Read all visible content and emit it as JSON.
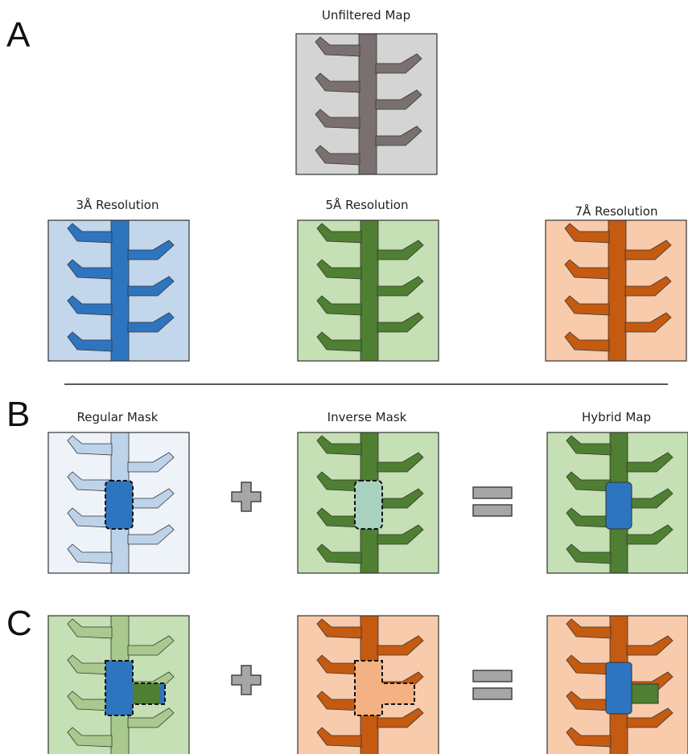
{
  "panels": {
    "A": {
      "letter": "A",
      "top": "Unfiltered Map",
      "row": [
        "3Å Resolution",
        "5Å Resolution",
        "7Å Resolution"
      ]
    },
    "B": {
      "letter": "B",
      "row": [
        "Regular Mask",
        "Inverse Mask",
        "Hybrid Map"
      ]
    },
    "C": {
      "letter": "C"
    }
  }
}
